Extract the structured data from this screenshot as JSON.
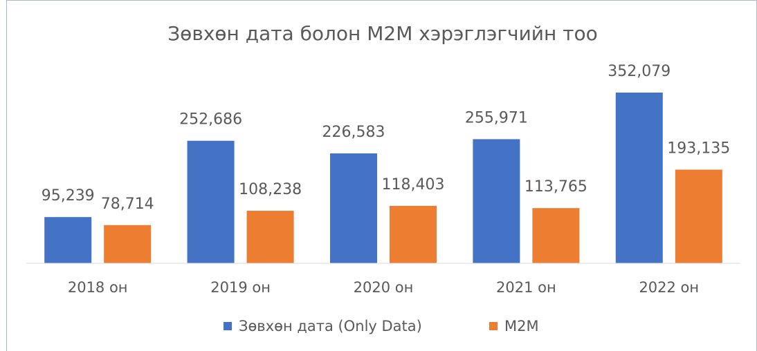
{
  "chart_data": {
    "type": "bar",
    "title": "Зөвхөн дата болон M2M хэрэглэгчийн тоо",
    "categories": [
      "2018 он",
      "2019 он",
      "2020 он",
      "2021 он",
      "2022 он"
    ],
    "series": [
      {
        "name": "Зөвхөн дата (Only Data)",
        "color": "#4472c4",
        "values": [
          95239,
          252686,
          226583,
          255971,
          352079
        ],
        "value_labels": [
          "95,239",
          "252,686",
          "226,583",
          "255,971",
          "352,079"
        ]
      },
      {
        "name": "M2M",
        "color": "#ed7d31",
        "values": [
          78714,
          108238,
          118403,
          113765,
          193135
        ],
        "value_labels": [
          "78,714",
          "108,238",
          "118,403",
          "113,765",
          "193,135"
        ]
      }
    ],
    "legend": "bottom"
  }
}
